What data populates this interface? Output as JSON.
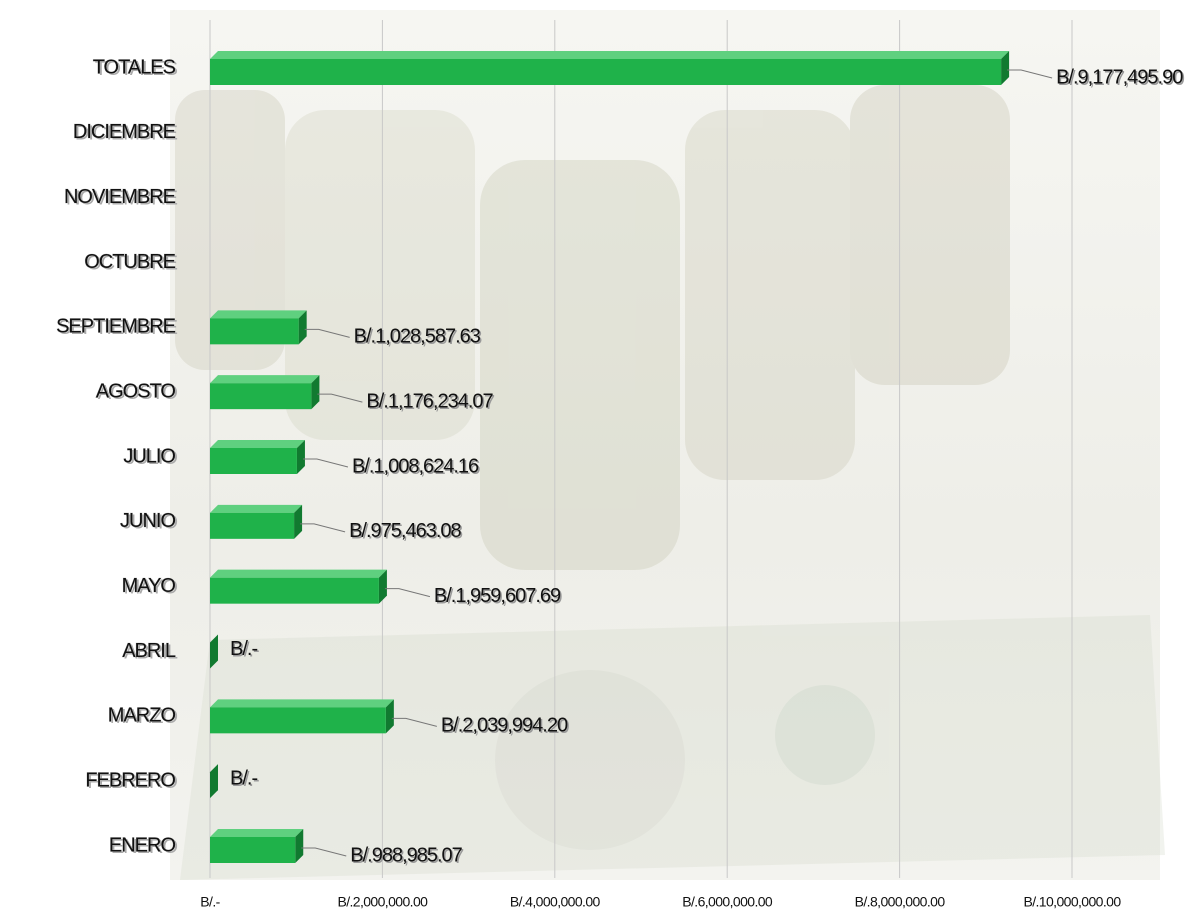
{
  "chart_data": {
    "type": "bar",
    "orientation": "horizontal",
    "categories": [
      "ENERO",
      "FEBRERO",
      "MARZO",
      "ABRIL",
      "MAYO",
      "JUNIO",
      "JULIO",
      "AGOSTO",
      "SEPTIEMBRE",
      "OCTUBRE",
      "NOVIEMBRE",
      "DICIEMBRE",
      "TOTALES"
    ],
    "values": [
      988985.07,
      0,
      2039994.2,
      0,
      1959607.69,
      975463.08,
      1008624.16,
      1176234.07,
      1028587.63,
      null,
      null,
      null,
      9177495.9
    ],
    "value_labels": [
      "B/.988,985.07",
      "B/.-",
      "B/.2,039,994.20",
      "B/.-",
      "B/.1,959,607.69",
      "B/.975,463.08",
      "B/.1,008,624.16",
      "B/.1,176,234.07",
      "B/.1,028,587.63",
      null,
      null,
      null,
      "B/.9,177,495.90"
    ],
    "color": "#1fb24a",
    "xlim": [
      0,
      10000000
    ],
    "xticks": [
      {
        "value": 0,
        "label": "B/.-"
      },
      {
        "value": 2000000,
        "label": "B/.2,000,000.00"
      },
      {
        "value": 4000000,
        "label": "B/.4,000,000.00"
      },
      {
        "value": 6000000,
        "label": "B/.6,000,000.00"
      },
      {
        "value": 8000000,
        "label": "B/.8,000,000.00"
      },
      {
        "value": 10000000,
        "label": "B/.10,000,000.00"
      }
    ],
    "grid": true
  }
}
